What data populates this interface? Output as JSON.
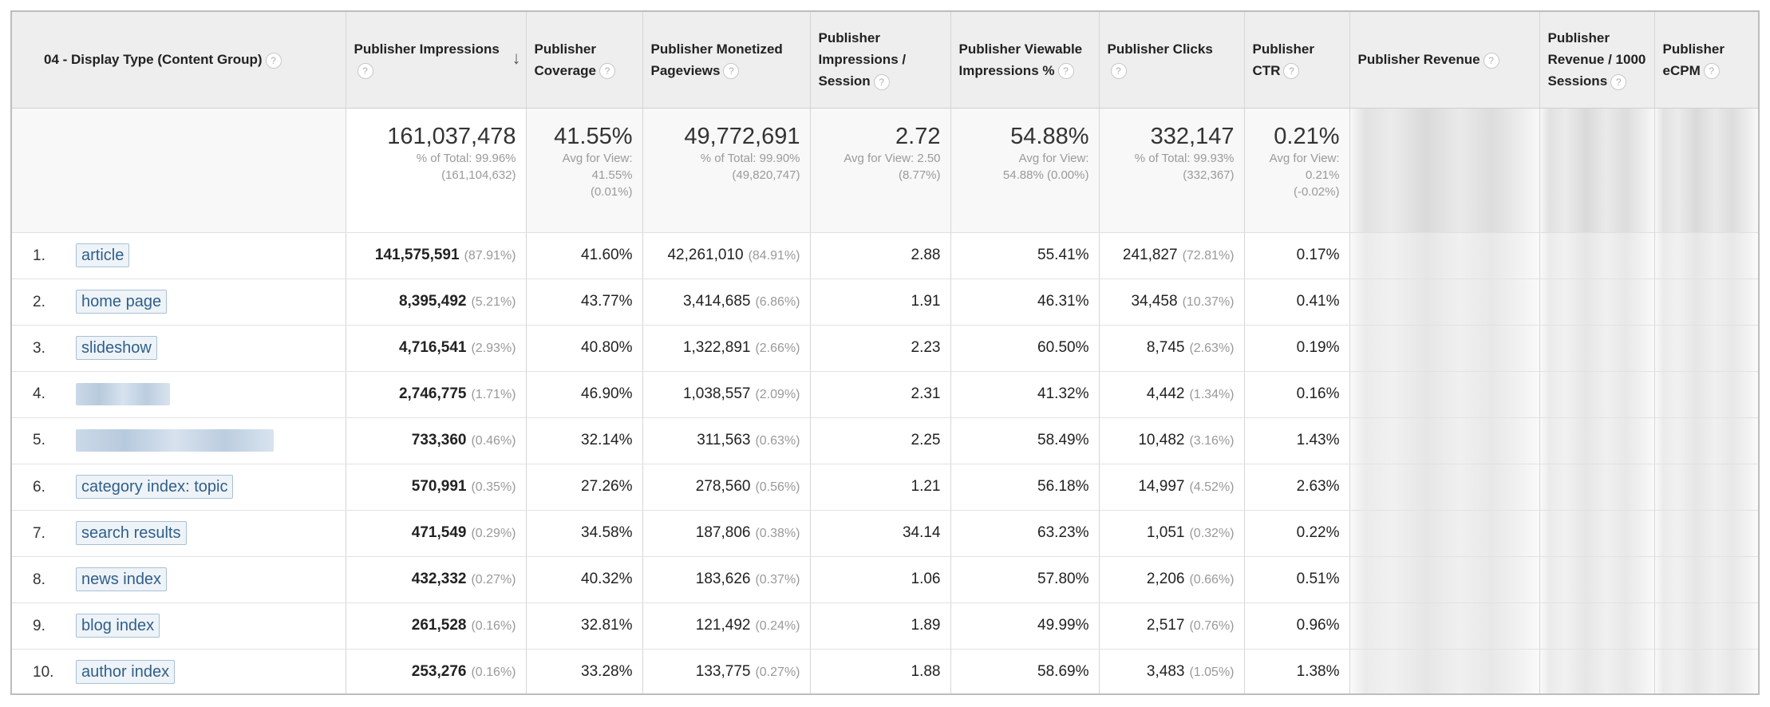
{
  "columns": {
    "dimension": "04 - Display Type (Content Group)",
    "impressions": "Publisher Impressions",
    "coverage": "Publisher Coverage",
    "monetized": "Publisher Monetized Pageviews",
    "imp_session": "Publisher Impressions / Session",
    "viewable": "Publisher Viewable Impressions %",
    "clicks": "Publisher Clicks",
    "ctr": "Publisher CTR",
    "revenue": "Publisher Revenue",
    "rev_1000": "Publisher Revenue / 1000 Sessions",
    "ecpm": "Publisher eCPM"
  },
  "sort_indicator": "↓",
  "help_glyph": "?",
  "totals": {
    "impressions": {
      "value": "161,037,478",
      "line1": "% of Total: 99.96%",
      "line2": "(161,104,632)"
    },
    "coverage": {
      "value": "41.55%",
      "line1": "Avg for View:",
      "line2": "41.55%",
      "line3": "(0.01%)"
    },
    "monetized": {
      "value": "49,772,691",
      "line1": "% of Total: 99.90%",
      "line2": "(49,820,747)"
    },
    "imp_session": {
      "value": "2.72",
      "line1": "Avg for View: 2.50",
      "line2": "(8.77%)"
    },
    "viewable": {
      "value": "54.88%",
      "line1": "Avg for View:",
      "line2": "54.88% (0.00%)"
    },
    "clicks": {
      "value": "332,147",
      "line1": "% of Total: 99.93%",
      "line2": "(332,367)"
    },
    "ctr": {
      "value": "0.21%",
      "line1": "Avg for View:",
      "line2": "0.21%",
      "line3": "(-0.02%)"
    }
  },
  "rows": [
    {
      "index": "1.",
      "label": "article",
      "impressions": "141,575,591",
      "impressions_pct": "(87.91%)",
      "coverage": "41.60%",
      "monetized": "42,261,010",
      "monetized_pct": "(84.91%)",
      "imp_session": "2.88",
      "viewable": "55.41%",
      "clicks": "241,827",
      "clicks_pct": "(72.81%)",
      "ctr": "0.17%"
    },
    {
      "index": "2.",
      "label": "home page",
      "impressions": "8,395,492",
      "impressions_pct": "(5.21%)",
      "coverage": "43.77%",
      "monetized": "3,414,685",
      "monetized_pct": "(6.86%)",
      "imp_session": "1.91",
      "viewable": "46.31%",
      "clicks": "34,458",
      "clicks_pct": "(10.37%)",
      "ctr": "0.41%"
    },
    {
      "index": "3.",
      "label": "slideshow",
      "impressions": "4,716,541",
      "impressions_pct": "(2.93%)",
      "coverage": "40.80%",
      "monetized": "1,322,891",
      "monetized_pct": "(2.66%)",
      "imp_session": "2.23",
      "viewable": "60.50%",
      "clicks": "8,745",
      "clicks_pct": "(2.63%)",
      "ctr": "0.19%"
    },
    {
      "index": "4.",
      "label": "",
      "impressions": "2,746,775",
      "impressions_pct": "(1.71%)",
      "coverage": "46.90%",
      "monetized": "1,038,557",
      "monetized_pct": "(2.09%)",
      "imp_session": "2.31",
      "viewable": "41.32%",
      "clicks": "4,442",
      "clicks_pct": "(1.34%)",
      "ctr": "0.16%"
    },
    {
      "index": "5.",
      "label": "",
      "impressions": "733,360",
      "impressions_pct": "(0.46%)",
      "coverage": "32.14%",
      "monetized": "311,563",
      "monetized_pct": "(0.63%)",
      "imp_session": "2.25",
      "viewable": "58.49%",
      "clicks": "10,482",
      "clicks_pct": "(3.16%)",
      "ctr": "1.43%"
    },
    {
      "index": "6.",
      "label": "category index: topic",
      "impressions": "570,991",
      "impressions_pct": "(0.35%)",
      "coverage": "27.26%",
      "monetized": "278,560",
      "monetized_pct": "(0.56%)",
      "imp_session": "1.21",
      "viewable": "56.18%",
      "clicks": "14,997",
      "clicks_pct": "(4.52%)",
      "ctr": "2.63%"
    },
    {
      "index": "7.",
      "label": "search results",
      "impressions": "471,549",
      "impressions_pct": "(0.29%)",
      "coverage": "34.58%",
      "monetized": "187,806",
      "monetized_pct": "(0.38%)",
      "imp_session": "34.14",
      "viewable": "63.23%",
      "clicks": "1,051",
      "clicks_pct": "(0.32%)",
      "ctr": "0.22%"
    },
    {
      "index": "8.",
      "label": "news index",
      "impressions": "432,332",
      "impressions_pct": "(0.27%)",
      "coverage": "40.32%",
      "monetized": "183,626",
      "monetized_pct": "(0.37%)",
      "imp_session": "1.06",
      "viewable": "57.80%",
      "clicks": "2,206",
      "clicks_pct": "(0.66%)",
      "ctr": "0.51%"
    },
    {
      "index": "9.",
      "label": "blog index",
      "impressions": "261,528",
      "impressions_pct": "(0.16%)",
      "coverage": "32.81%",
      "monetized": "121,492",
      "monetized_pct": "(0.24%)",
      "imp_session": "1.89",
      "viewable": "49.99%",
      "clicks": "2,517",
      "clicks_pct": "(0.76%)",
      "ctr": "0.96%"
    },
    {
      "index": "10.",
      "label": "author index",
      "impressions": "253,276",
      "impressions_pct": "(0.16%)",
      "coverage": "33.28%",
      "monetized": "133,775",
      "monetized_pct": "(0.27%)",
      "imp_session": "1.88",
      "viewable": "58.69%",
      "clicks": "3,483",
      "clicks_pct": "(1.05%)",
      "ctr": "1.38%"
    }
  ]
}
